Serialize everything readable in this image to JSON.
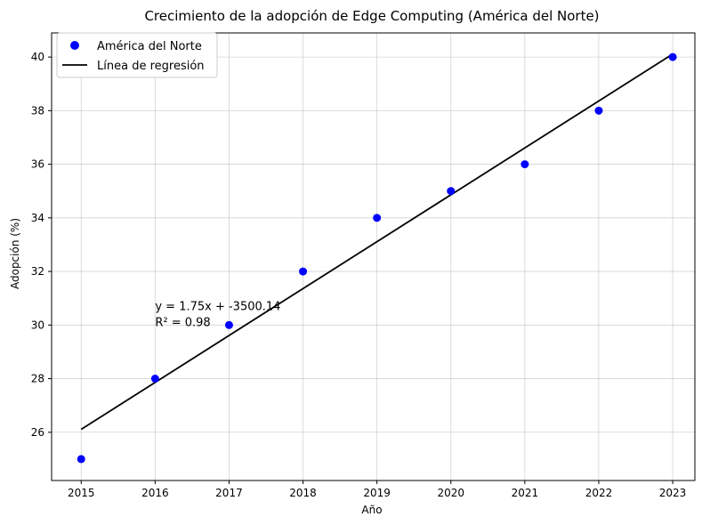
{
  "chart_data": {
    "type": "scatter",
    "title": "Crecimiento de la adopción de Edge Computing (América del Norte)",
    "xlabel": "Año",
    "ylabel": "Adopción (%)",
    "xlim": [
      2014.6,
      2023.3
    ],
    "ylim": [
      24.2,
      40.9
    ],
    "xticks": [
      2015,
      2016,
      2017,
      2018,
      2019,
      2020,
      2021,
      2022,
      2023
    ],
    "yticks": [
      26,
      28,
      30,
      32,
      34,
      36,
      38,
      40
    ],
    "grid": true,
    "legend_position": "top-left",
    "series": [
      {
        "name": "América del Norte",
        "kind": "scatter",
        "color": "#0000ff",
        "x": [
          2015,
          2016,
          2017,
          2018,
          2019,
          2020,
          2021,
          2022,
          2023
        ],
        "y": [
          25,
          28,
          30,
          32,
          34,
          35,
          36,
          38,
          40
        ]
      },
      {
        "name": "Línea de regresión",
        "kind": "line",
        "color": "#000000",
        "x": [
          2015,
          2023
        ],
        "y": [
          26.11,
          40.11
        ]
      }
    ],
    "annotation": {
      "lines": [
        "y = 1.75x + -3500.14",
        "R² = 0.98"
      ],
      "x": 2016,
      "y": 30
    }
  }
}
